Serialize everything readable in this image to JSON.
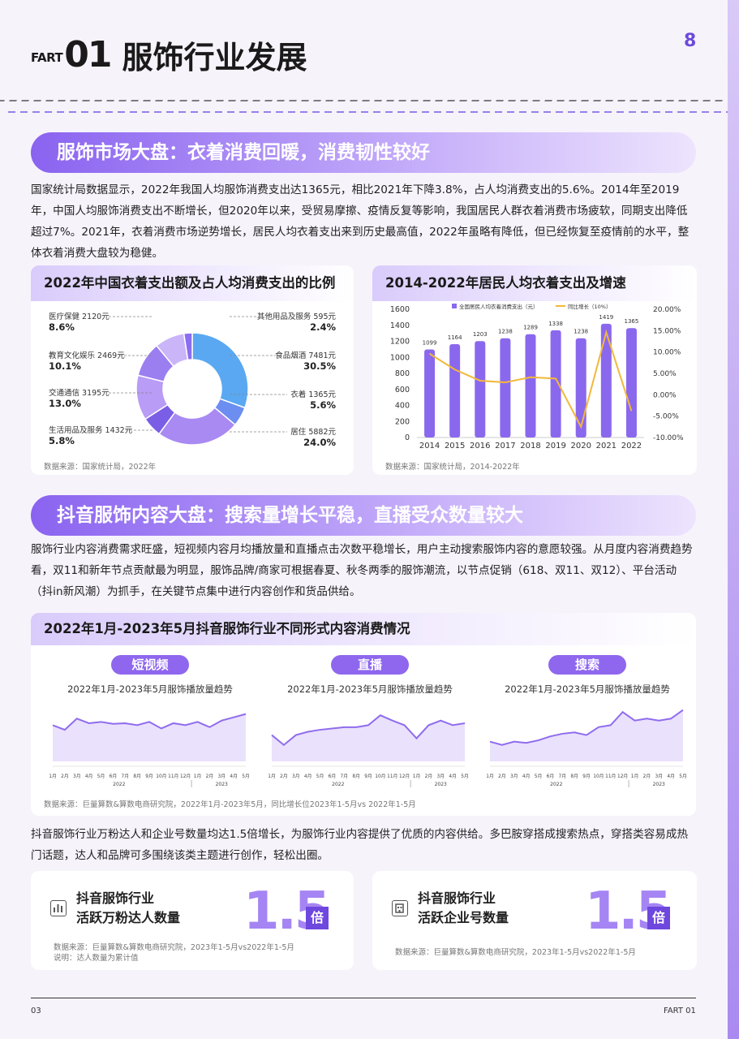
{
  "header": {
    "prefix": "FART",
    "number": "01",
    "title": "服饰行业发展",
    "page_badge": "8"
  },
  "section1": {
    "banner": "服饰市场大盘：衣着消费回暖，消费韧性较好",
    "paragraph": "国家统计局数据显示，2022年我国人均服饰消费支出达1365元，相比2021年下降3.8%，占人均消费支出的5.6%。2014年至2019年，中国人均服饰消费支出不断增长，但2020年以来，受贸易摩擦、疫情反复等影响，我国居民人群衣着消费市场疲软，同期支出降低超过7%。2021年，衣着消费市场逆势增长，居民人均衣着支出来到历史最高值，2022年虽略有降低，但已经恢复至疫情前的水平，整体衣着消费大盘较为稳健。"
  },
  "donut_card": {
    "title": "2022年中国衣着支出额及占人均消费支出的比例",
    "source": "数据来源：国家统计局，2022年",
    "labels_left": [
      {
        "name": "医疗保健 2120元",
        "pct": "8.6%"
      },
      {
        "name": "教育文化娱乐 2469元",
        "pct": "10.1%"
      },
      {
        "name": "交通通信 3195元",
        "pct": "13.0%"
      },
      {
        "name": "生活用品及服务 1432元",
        "pct": "5.8%"
      }
    ],
    "labels_right": [
      {
        "name": "其他用品及服务 595元",
        "pct": "2.4%"
      },
      {
        "name": "食品烟酒 7481元",
        "pct": "30.5%"
      },
      {
        "name": "衣着 1365元",
        "pct": "5.6%"
      },
      {
        "name": "居住 5882元",
        "pct": "24.0%"
      }
    ]
  },
  "bar_card": {
    "title": "2014-2022年居民人均衣着支出及增速",
    "source": "数据来源：国家统计局，2014-2022年",
    "legend_bar": "全国居民人均衣着消费支出（元）",
    "legend_line": "同比增长（10%）",
    "left_ticks": [
      "1600",
      "1400",
      "1200",
      "1000",
      "800",
      "600",
      "400",
      "200",
      "0"
    ],
    "right_ticks": [
      "20.00%",
      "15.00%",
      "10.00%",
      "5.00%",
      "0.00%",
      "-5.00%",
      "-10.00%"
    ],
    "bar_labels": [
      "1099",
      "1164",
      "1203",
      "1238",
      "1289",
      "1338",
      "1238",
      "1419",
      "1365"
    ],
    "x_labels": [
      "2014",
      "2015",
      "2016",
      "2017",
      "2018",
      "2019",
      "2020",
      "2021",
      "2022"
    ]
  },
  "section2": {
    "banner": "抖音服饰内容大盘：搜索量增长平稳，直播受众数量较大",
    "paragraph": "服饰行业内容消费需求旺盛，短视频内容月均播放量和直播点击次数平稳增长，用户主动搜索服饰内容的意愿较强。从月度内容消费趋势看，双11和新年节点贡献最为明显，服饰品牌/商家可根据春夏、秋冬两季的服饰潮流，以节点促销（618、双11、双12）、平台活动（抖in新风潮）为抓手，在关键节点集中进行内容创作和货品供给。"
  },
  "trend_card": {
    "title": "2022年1月-2023年5月抖音服饰行业不同形式内容消费情况",
    "source": "数据来源：巨量算数&算数电商研究院，2022年1月-2023年5月，同比增长位2023年1-5月vs 2022年1-5月",
    "panels": [
      {
        "pill": "短视频",
        "subtitle": "2022年1月-2023年5月服饰播放量趋势"
      },
      {
        "pill": "直播",
        "subtitle": "2022年1月-2023年5月服饰播放量趋势"
      },
      {
        "pill": "搜索",
        "subtitle": "2022年1月-2023年5月服饰播放量趋势"
      }
    ],
    "month_labels": [
      "1月",
      "2月",
      "3月",
      "4月",
      "5月",
      "6月",
      "7月",
      "8月",
      "9月",
      "10月",
      "11月",
      "12月",
      "1月",
      "2月",
      "3月",
      "4月",
      "5月"
    ],
    "year_labels": [
      "2022",
      "2023"
    ]
  },
  "section3": {
    "paragraph": "抖音服饰行业万粉达人和企业号数量均达1.5倍增长，为服饰行业内容提供了优质的内容供给。多巴胺穿搭成搜索热点，穿搭类容易成热门话题，达人和品牌可多围绕该类主题进行创作，轻松出圈。"
  },
  "stats": [
    {
      "label1": "抖音服饰行业",
      "label2": "活跃万粉达人数量",
      "value": "1.5",
      "unit": "倍",
      "source1": "数据来源：巨量算数&算数电商研究院，2023年1-5月vs2022年1-5月",
      "source2": "说明：达人数量为累计值"
    },
    {
      "label1": "抖音服饰行业",
      "label2": "活跃企业号数量",
      "value": "1.5",
      "unit": "倍",
      "source1": "数据来源：巨量算数&算数电商研究院，2023年1-5月vs2022年1-5月",
      "source2": ""
    }
  ],
  "footer": {
    "left": "03",
    "right": "FART 01"
  },
  "chart_data": [
    {
      "type": "pie",
      "title": "2022年中国衣着支出额及占人均消费支出的比例",
      "categories": [
        "食品烟酒",
        "衣着",
        "居住",
        "生活用品及服务",
        "交通通信",
        "教育文化娱乐",
        "医疗保健",
        "其他用品及服务"
      ],
      "values": [
        30.5,
        5.6,
        24.0,
        5.8,
        13.0,
        10.1,
        8.6,
        2.4
      ],
      "amounts": [
        7481,
        1365,
        5882,
        1432,
        3195,
        2469,
        2120,
        595
      ],
      "colors": [
        "#5aa8f2",
        "#6b8ef0",
        "#a98af3",
        "#7a5ee6",
        "#b89cf5",
        "#9b7ef0",
        "#c9b5f8",
        "#8a6df0"
      ]
    },
    {
      "type": "bar",
      "title": "2014-2022年居民人均衣着支出及增速",
      "categories": [
        "2014",
        "2015",
        "2016",
        "2017",
        "2018",
        "2019",
        "2020",
        "2021",
        "2022"
      ],
      "series": [
        {
          "name": "全国居民人均衣着消费支出（元）",
          "values": [
            1099,
            1164,
            1203,
            1238,
            1289,
            1338,
            1238,
            1419,
            1365
          ],
          "axis": "left"
        },
        {
          "name": "同比增长（10%）",
          "type": "line",
          "values": [
            9.6,
            5.9,
            3.3,
            2.9,
            4.1,
            3.8,
            -7.5,
            14.6,
            -3.8
          ],
          "axis": "right"
        }
      ],
      "ylim": [
        0,
        1600
      ],
      "y2lim": [
        -10,
        20
      ],
      "colors": {
        "bar": "#8a68ee",
        "line": "#f2b83a"
      }
    },
    {
      "type": "area",
      "title": "2022年1月-2023年5月服饰播放量趋势",
      "series": [
        {
          "name": "短视频",
          "values": [
            55,
            48,
            65,
            58,
            60,
            57,
            58,
            55,
            60,
            50,
            58,
            55,
            60,
            52,
            62,
            67,
            72
          ]
        },
        {
          "name": "直播",
          "values": [
            40,
            25,
            40,
            45,
            48,
            50,
            52,
            52,
            55,
            70,
            62,
            55,
            35,
            55,
            62,
            55,
            58
          ]
        },
        {
          "name": "搜索",
          "values": [
            30,
            25,
            30,
            28,
            32,
            38,
            42,
            44,
            40,
            52,
            55,
            75,
            62,
            65,
            62,
            65,
            78
          ]
        }
      ],
      "colors": {
        "line": "#8f6cee",
        "fill": "#e6dcfb"
      }
    }
  ]
}
